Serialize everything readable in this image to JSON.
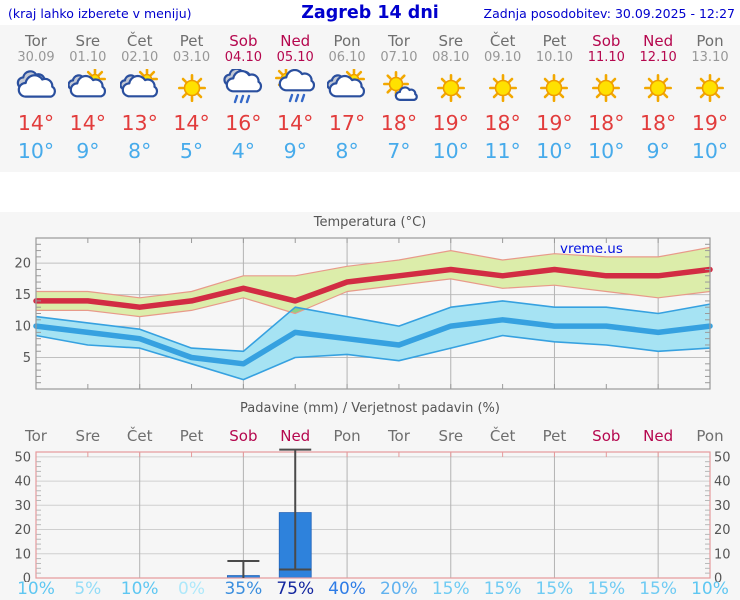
{
  "header": {
    "note": "(kraj lahko izberete v meniju)",
    "title": "Zagreb 14 dni",
    "updated": "Zadnja posodobitev: 30.09.2025 - 12:27"
  },
  "watermark": "vreme.us",
  "colors": {
    "header_blue": "#0000cd",
    "weekend": "#b5074e",
    "weekday": "#6e6e6e",
    "date_gray": "#979797",
    "tmax_text": "#e23c3c",
    "tmin_text": "#47abeb",
    "red_line": "#d22c43",
    "blue_line": "#36a1e0",
    "green_band": "#dcedaa",
    "green_band_edge": "#e89a8a",
    "blue_band": "#a6e3f3",
    "band_overlap": "#8bd286",
    "bar_blue": "#2e82dc",
    "bar_edge": "#2063b8",
    "whisker": "#4a4a4a",
    "frame_gray": "#9a9a9a",
    "frame_pink": "#e59a9b",
    "grid_gray": "#c0c0c0",
    "grid_vert": "#b3b3b3",
    "axis_text": "#555555",
    "chart_bg": "#f6f6f6",
    "watermark_blue": "#0010e0"
  },
  "prob_colors": {
    "0": "#aee8fa",
    "5": "#93dcf7",
    "10": "#5ec7f2",
    "15": "#6fcbf3",
    "20": "#60b2ef",
    "35": "#3a8ede",
    "40": "#2e7ce6",
    "75": "#13269f"
  },
  "days": [
    {
      "name": "Tor",
      "date": "30.09",
      "weekend": false,
      "icon": "cloudy",
      "tmax_label": "14°",
      "tmin_label": "10°",
      "prob_label": "10%"
    },
    {
      "name": "Sre",
      "date": "01.10",
      "weekend": false,
      "icon": "partly-cloudy",
      "tmax_label": "14°",
      "tmin_label": "9°",
      "prob_label": "5%"
    },
    {
      "name": "Čet",
      "date": "02.10",
      "weekend": false,
      "icon": "partly-cloudy",
      "tmax_label": "13°",
      "tmin_label": "8°",
      "prob_label": "10%"
    },
    {
      "name": "Pet",
      "date": "03.10",
      "weekend": false,
      "icon": "sunny",
      "tmax_label": "14°",
      "tmin_label": "5°",
      "prob_label": "0%"
    },
    {
      "name": "Sob",
      "date": "04.10",
      "weekend": true,
      "icon": "rain",
      "tmax_label": "16°",
      "tmin_label": "4°",
      "prob_label": "35%"
    },
    {
      "name": "Ned",
      "date": "05.10",
      "weekend": true,
      "icon": "sun-rain",
      "tmax_label": "14°",
      "tmin_label": "9°",
      "prob_label": "75%"
    },
    {
      "name": "Pon",
      "date": "06.10",
      "weekend": false,
      "icon": "partly-cloudy",
      "tmax_label": "17°",
      "tmin_label": "8°",
      "prob_label": "40%"
    },
    {
      "name": "Tor",
      "date": "07.10",
      "weekend": false,
      "icon": "mostly-sunny",
      "tmax_label": "18°",
      "tmin_label": "7°",
      "prob_label": "20%"
    },
    {
      "name": "Sre",
      "date": "08.10",
      "weekend": false,
      "icon": "sunny",
      "tmax_label": "19°",
      "tmin_label": "10°",
      "prob_label": "15%"
    },
    {
      "name": "Čet",
      "date": "09.10",
      "weekend": false,
      "icon": "sunny",
      "tmax_label": "18°",
      "tmin_label": "11°",
      "prob_label": "15%"
    },
    {
      "name": "Pet",
      "date": "10.10",
      "weekend": false,
      "icon": "sunny",
      "tmax_label": "19°",
      "tmin_label": "10°",
      "prob_label": "15%"
    },
    {
      "name": "Sob",
      "date": "11.10",
      "weekend": true,
      "icon": "sunny",
      "tmax_label": "18°",
      "tmin_label": "10°",
      "prob_label": "15%"
    },
    {
      "name": "Ned",
      "date": "12.10",
      "weekend": true,
      "icon": "sunny",
      "tmax_label": "18°",
      "tmin_label": "9°",
      "prob_label": "15%"
    },
    {
      "name": "Pon",
      "date": "13.10",
      "weekend": false,
      "icon": "sunny",
      "tmax_label": "19°",
      "tmin_label": "10°",
      "prob_label": "10%"
    }
  ],
  "chart_data": [
    {
      "type": "line",
      "title": "Temperatura (°C)",
      "x_labels": [
        "Tor",
        "Sre",
        "Čet",
        "Pet",
        "Sob",
        "Ned",
        "Pon",
        "Tor",
        "Sre",
        "Čet",
        "Pet",
        "Sob",
        "Ned",
        "Pon"
      ],
      "ylim": [
        0,
        24
      ],
      "yticks": [
        5,
        10,
        15,
        20
      ],
      "grid": true,
      "series": [
        {
          "name": "max_temp",
          "values": [
            14,
            14,
            13,
            14,
            16,
            14,
            17,
            18,
            19,
            18,
            19,
            18,
            18,
            19
          ]
        },
        {
          "name": "max_temp_band_upper",
          "values": [
            15.5,
            15.5,
            14.5,
            15.5,
            18,
            18,
            19.5,
            20.5,
            22,
            20.5,
            21.5,
            21,
            21,
            22.5
          ]
        },
        {
          "name": "max_temp_band_lower",
          "values": [
            12.5,
            12.5,
            11.5,
            12.5,
            14.5,
            12,
            15.5,
            16.5,
            17.5,
            16,
            16.5,
            15.5,
            14.5,
            15.5
          ]
        },
        {
          "name": "min_temp",
          "values": [
            10,
            9,
            8,
            5,
            4,
            9,
            8,
            7,
            10,
            11,
            10,
            10,
            9,
            10
          ]
        },
        {
          "name": "min_temp_band_upper",
          "values": [
            11.5,
            10.5,
            9.5,
            6.5,
            6,
            13,
            11.5,
            10,
            13,
            14,
            13,
            13,
            12,
            13.5
          ]
        },
        {
          "name": "min_temp_band_lower",
          "values": [
            8.5,
            7,
            6.5,
            4,
            1.5,
            5,
            5.5,
            4.5,
            6.5,
            8.5,
            7.5,
            7,
            6,
            6.5
          ]
        }
      ]
    },
    {
      "type": "bar",
      "title": "Padavine (mm) / Verjetnost padavin (%)",
      "x_labels": [
        "Tor",
        "Sre",
        "Čet",
        "Pet",
        "Sob",
        "Ned",
        "Pon",
        "Tor",
        "Sre",
        "Čet",
        "Pet",
        "Sob",
        "Ned",
        "Pon"
      ],
      "ylim": [
        0,
        52
      ],
      "yticks": [
        0,
        10,
        20,
        30,
        40,
        50
      ],
      "grid": true,
      "series": [
        {
          "name": "padavine_mm",
          "values": [
            0,
            0,
            0,
            0,
            1,
            27,
            0,
            0,
            0,
            0,
            0,
            0,
            0,
            0
          ]
        },
        {
          "name": "whisker_min_mm",
          "values": [
            null,
            null,
            null,
            null,
            0,
            3.5,
            null,
            null,
            null,
            null,
            null,
            null,
            null,
            null
          ]
        },
        {
          "name": "whisker_max_mm",
          "values": [
            null,
            null,
            null,
            null,
            7,
            53,
            null,
            null,
            null,
            null,
            null,
            null,
            null,
            null
          ]
        },
        {
          "name": "verjetnost_padavin_pct",
          "values": [
            10,
            5,
            10,
            0,
            35,
            75,
            40,
            20,
            15,
            15,
            15,
            15,
            15,
            10
          ]
        }
      ]
    }
  ]
}
